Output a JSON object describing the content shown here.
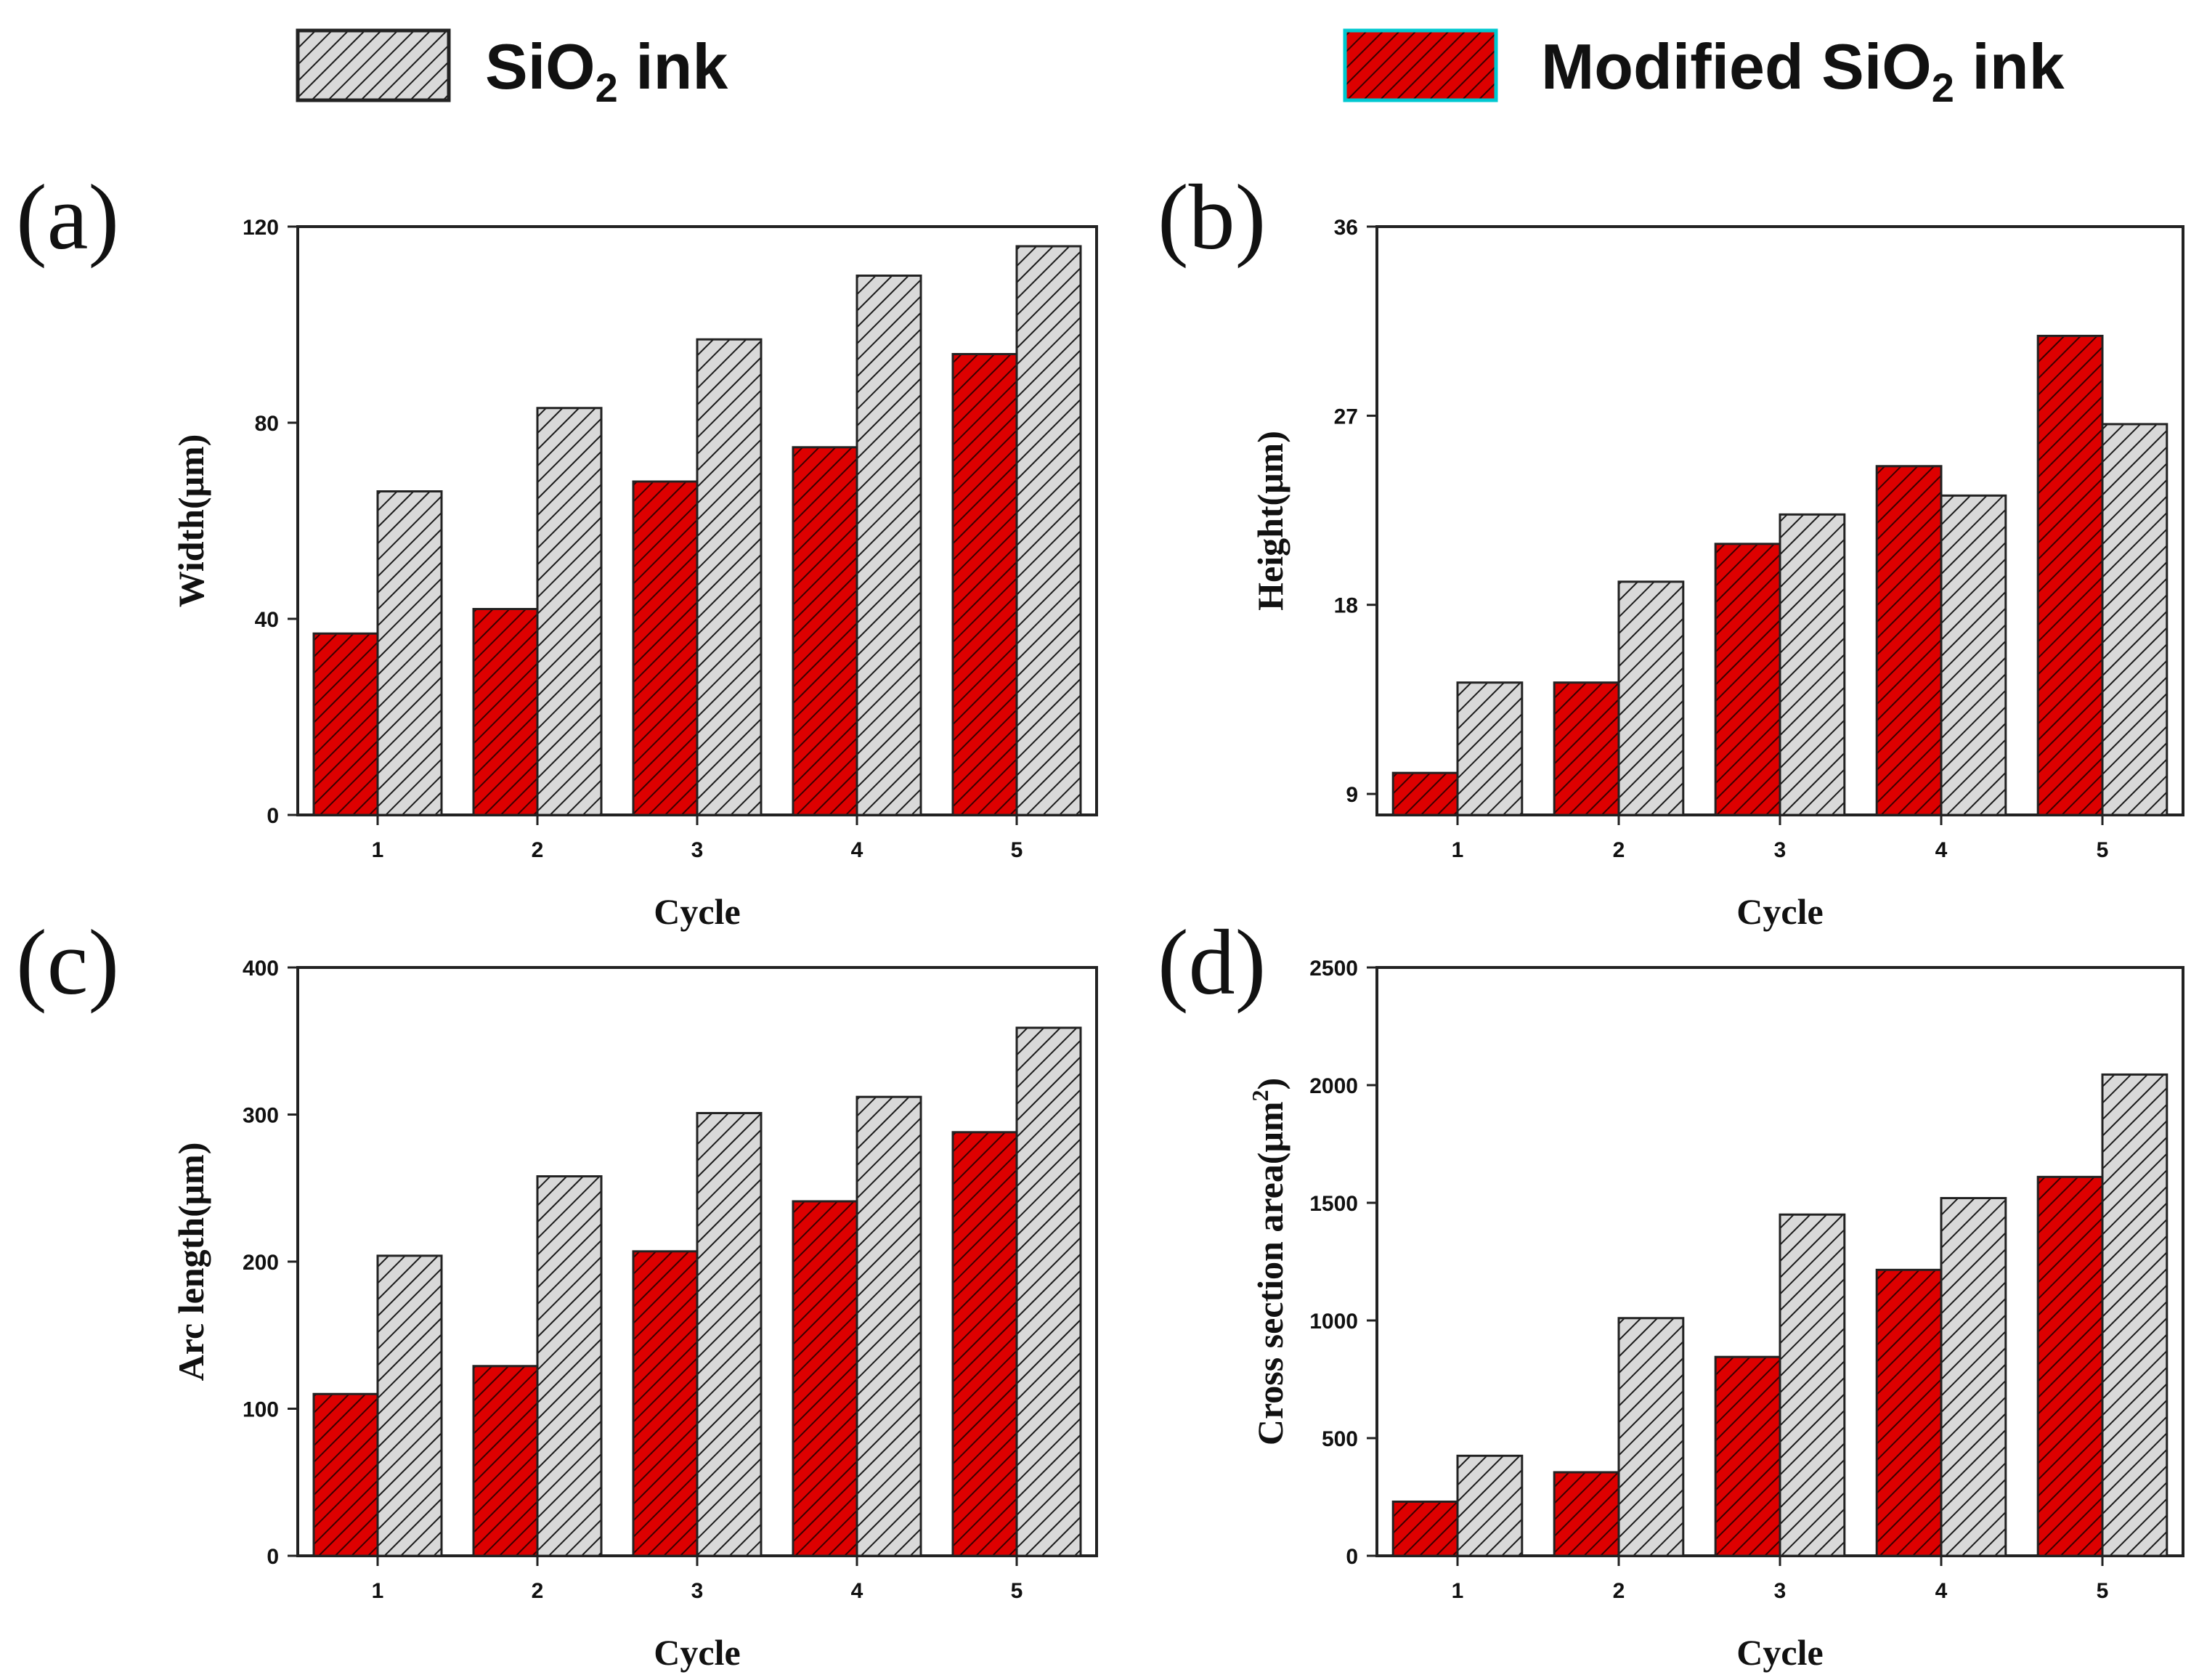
{
  "colors": {
    "modified": "#dd0000",
    "plain": "#d9d9d9",
    "stroke": "#222222",
    "hatch": "#1a1a1a",
    "legend_modified_border": "#00c8d0"
  },
  "legend": [
    {
      "prefix": "SiO",
      "sub": "2",
      "suffix": " ink",
      "series": "plain"
    },
    {
      "prefix": "Modified SiO",
      "sub": "2",
      "suffix": " ink",
      "series": "modified"
    }
  ],
  "chart_data": [
    {
      "id": "a",
      "panel_label": "(a)",
      "type": "bar",
      "categories": [
        "1",
        "2",
        "3",
        "4",
        "5"
      ],
      "series": [
        {
          "name": "Modified SiO2 ink",
          "values": [
            37,
            42,
            68,
            75,
            94
          ]
        },
        {
          "name": "SiO2 ink",
          "values": [
            66,
            83,
            97,
            110,
            116
          ]
        }
      ],
      "xlabel": "Cycle",
      "ylabel": "Width(μm)",
      "ylim": [
        0,
        120
      ],
      "yticks": [
        0,
        40,
        80,
        120
      ]
    },
    {
      "id": "b",
      "panel_label": "(b)",
      "type": "bar",
      "categories": [
        "1",
        "2",
        "3",
        "4",
        "5"
      ],
      "series": [
        {
          "name": "Modified SiO2 ink",
          "values": [
            10,
            14.3,
            20.9,
            24.6,
            30.8
          ]
        },
        {
          "name": "SiO2 ink",
          "values": [
            14.3,
            19.1,
            22.3,
            23.2,
            26.6
          ]
        }
      ],
      "xlabel": "Cycle",
      "ylabel": "Height(μm)",
      "ylim": [
        8,
        36
      ],
      "yticks": [
        9,
        18,
        27,
        36
      ]
    },
    {
      "id": "c",
      "panel_label": "(c)",
      "type": "bar",
      "categories": [
        "1",
        "2",
        "3",
        "4",
        "5"
      ],
      "series": [
        {
          "name": "Modified SiO2 ink",
          "values": [
            110,
            129,
            207,
            241,
            288
          ]
        },
        {
          "name": "SiO2 ink",
          "values": [
            204,
            258,
            301,
            312,
            359
          ]
        }
      ],
      "xlabel": "Cycle",
      "ylabel": "Arc length(μm)",
      "ylim": [
        0,
        400
      ],
      "yticks": [
        0,
        100,
        200,
        300,
        400
      ]
    },
    {
      "id": "d",
      "panel_label": "(d)",
      "type": "bar",
      "categories": [
        "1",
        "2",
        "3",
        "4",
        "5"
      ],
      "series": [
        {
          "name": "Modified SiO2 ink",
          "values": [
            230,
            355,
            845,
            1215,
            1610
          ]
        },
        {
          "name": "SiO2 ink",
          "values": [
            425,
            1010,
            1450,
            1520,
            2045
          ]
        }
      ],
      "xlabel": "Cycle",
      "ylabel": "Cross section area(μm",
      "ylabel_sup": "2",
      "ylabel_end": ")",
      "ylim": [
        0,
        2500
      ],
      "yticks": [
        0,
        500,
        1000,
        1500,
        2000,
        2500
      ]
    }
  ]
}
